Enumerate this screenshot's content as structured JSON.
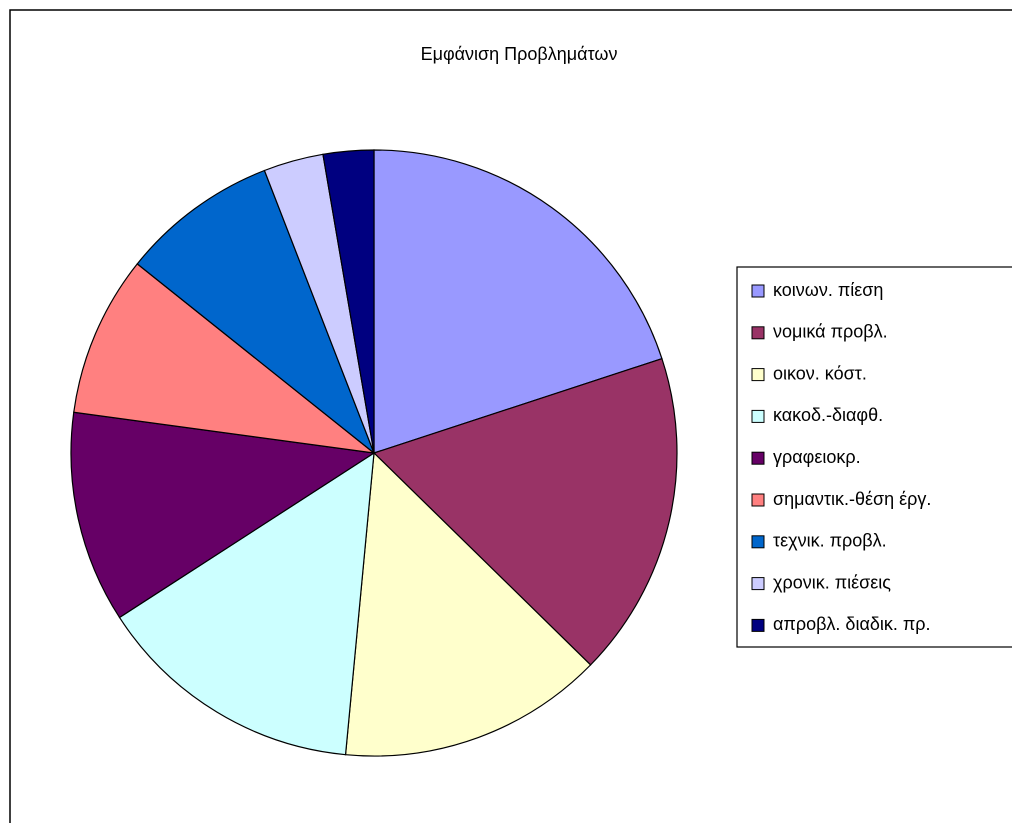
{
  "chart_data": {
    "type": "pie",
    "title": "Εμφάνιση Προβλημάτων",
    "categories": [
      "κοινων. πίεση",
      "νομικά προβλ.",
      "οικον. κόστ.",
      "κακοδ.-διαφθ.",
      "γραφειοκρ.",
      "σημαντικ.-θέση έργ.",
      "τεχνικ. προβλ.",
      "χρονικ. πιέσεις",
      "απροβλ. διαδικ. πρ."
    ],
    "values": [
      20,
      17.4,
      14.2,
      14.4,
      11.3,
      8.6,
      8.4,
      3.2,
      2.7
    ],
    "colors": [
      "#9999ff",
      "#993366",
      "#ffffcc",
      "#ccffff",
      "#660066",
      "#ff8080",
      "#0066cc",
      "#ccccff",
      "#000080"
    ],
    "legend": "right"
  }
}
